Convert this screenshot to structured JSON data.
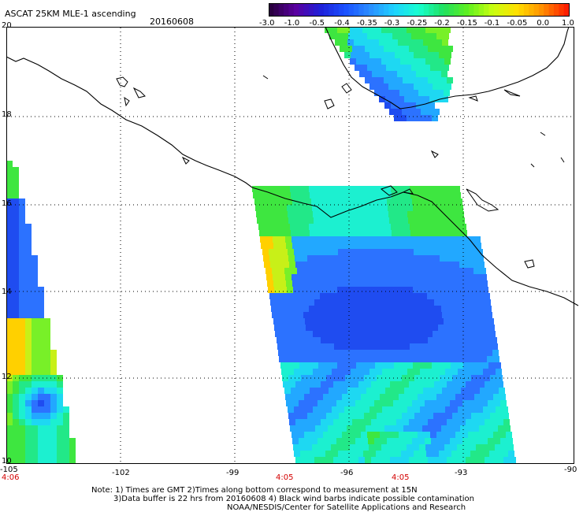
{
  "header": {
    "title": "ASCAT 25KM MLE-1 ascending",
    "date": "20160608"
  },
  "colorbar": {
    "labels": [
      "-3.0",
      "-1.0",
      "-0.5",
      "-0.4",
      "-0.35",
      "-0.3",
      "-0.25",
      "-0.2",
      "-0.15",
      "-0.1",
      "-0.05",
      "0.0",
      "1.0"
    ],
    "colors": [
      "#2a0040",
      "#5a00a0",
      "#1f1fd8",
      "#1a50ff",
      "#2a8cff",
      "#1ed2ff",
      "#18ffd0",
      "#20e060",
      "#60f020",
      "#c8ff10",
      "#ffe000",
      "#ff9000",
      "#ff2000"
    ]
  },
  "axes": {
    "lon_labels": [
      "-105",
      "-102",
      "-99",
      "-96",
      "-93",
      "-90"
    ],
    "lat_labels": [
      "20",
      "18",
      "16",
      "14",
      "12",
      "10"
    ],
    "lon_range": [
      -105,
      -90
    ],
    "lat_range": [
      10,
      20
    ]
  },
  "pass_times": [
    "4:06",
    "4:05",
    "4:05"
  ],
  "notes": {
    "line1": "Note: 1) Times are GMT 2)Times along bottom correspond to measurement at 15N",
    "line2": "3)Data buffer is 22 hrs from 20160608 4) Black wind barbs indicate possible contamination",
    "line3": "NOAA/NESDIS/Center for Satellite Applications and Research"
  }
}
